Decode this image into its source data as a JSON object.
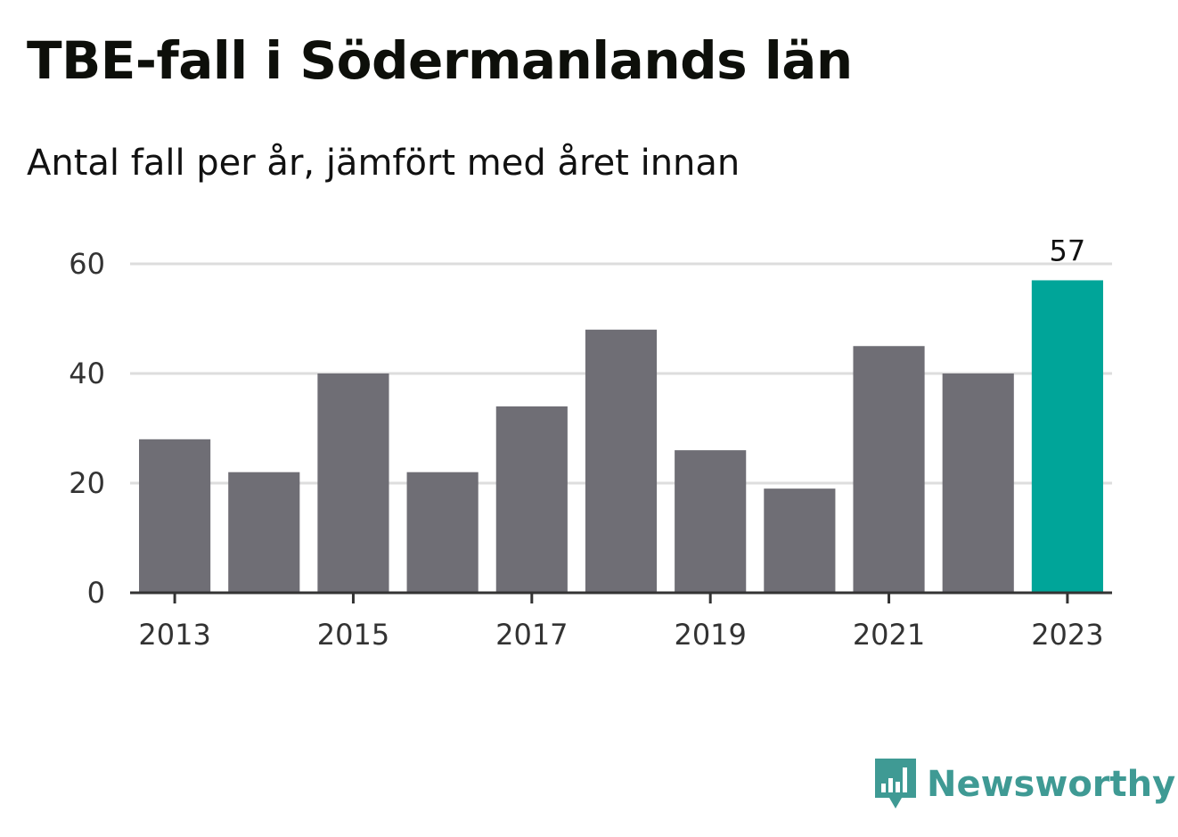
{
  "title": "TBE-fall i Södermanlands län",
  "subtitle": "Antal fall per år, jämfört med året innan",
  "brand": {
    "name": "Newsworthy",
    "icon": "newsworthy-logo-icon",
    "color": "#3f9a94"
  },
  "colors": {
    "bar": "#6f6e75",
    "highlight": "#00a599",
    "grid": "#dddddd",
    "axis": "#333333"
  },
  "chart_data": {
    "type": "bar",
    "categories": [
      "2013",
      "2014",
      "2015",
      "2016",
      "2017",
      "2018",
      "2019",
      "2020",
      "2021",
      "2022",
      "2023"
    ],
    "values": [
      28,
      22,
      40,
      22,
      34,
      48,
      26,
      19,
      45,
      40,
      57
    ],
    "highlight_index": 10,
    "data_labels": [
      {
        "category": "2023",
        "text": "57"
      }
    ],
    "x_tick_labels": [
      "2013",
      "2015",
      "2017",
      "2019",
      "2021",
      "2023"
    ],
    "y_ticks": [
      0,
      20,
      40,
      60
    ],
    "ylim": [
      0,
      60
    ],
    "grid": true,
    "xlabel": "",
    "ylabel": ""
  }
}
